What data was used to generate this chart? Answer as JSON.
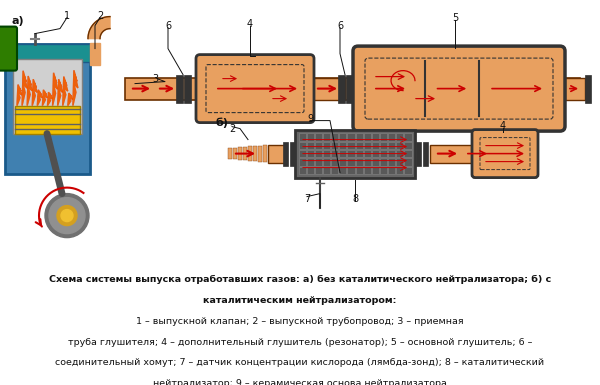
{
  "background_color": "#ffffff",
  "caption_line1_bold": "Схема системы выпуска отработавших газов: а) без каталитического нейтрализатора; б) с",
  "caption_line2_bold": "каталитическим нейтрализатором:",
  "caption_line2_normal": " 1 – выпускной клапан; 2 – выпускной трубопровод; 3 – приемная",
  "caption_line3": "труба глушителя; 4 – дополнительный глушитель (резонатор); 5 – основной глушитель; 6 –",
  "caption_line4": "соединительный хомут; 7 – датчик концентрации кислорода (лямбда-зонд); 8 – каталитический",
  "caption_line5": "нейтрализатор; 9 – керамическая основа нейтрализатора",
  "orange": "#E8A060",
  "dark_orange": "#8B4513",
  "orange_dark_edge": "#6B3000",
  "red": "#CC0000",
  "green": "#2E7D00",
  "blue_cyl": "#4080B0",
  "blue_cyl_dark": "#1a5a8a",
  "yellow": "#F0C000",
  "gray_dark": "#333333",
  "gray_med": "#666666",
  "gray_light": "#999999",
  "black": "#111111",
  "white": "#ffffff",
  "peach": "#F0A060",
  "dpi": 100,
  "fig_w": 6.0,
  "fig_h": 3.85
}
